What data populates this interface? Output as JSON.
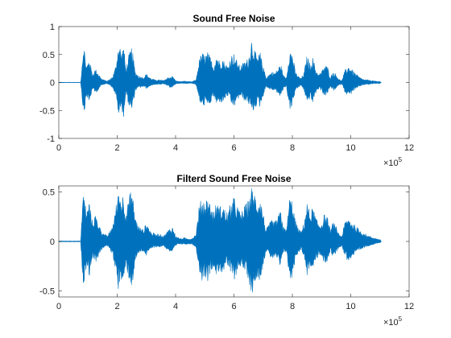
{
  "chart_data": [
    {
      "type": "line",
      "title": "Sound Free Noise",
      "xlabel": "",
      "ylabel": "",
      "xlim": [
        0,
        1200000
      ],
      "ylim": [
        -1,
        1
      ],
      "xticks": [
        0,
        200000,
        400000,
        600000,
        800000,
        1000000,
        1200000
      ],
      "xtick_labels": [
        "0",
        "2",
        "4",
        "6",
        "8",
        "10",
        "12"
      ],
      "x_exponent_base": "×10",
      "x_exponent": "5",
      "yticks": [
        -1,
        -0.5,
        0,
        0.5,
        1
      ],
      "ytick_labels": [
        "-1",
        "-0.5",
        "0",
        "0.5",
        "1"
      ],
      "grid": false,
      "color": "#0072BD",
      "signal_length": 1105000,
      "envelope": {
        "x": [
          0,
          75000,
          80000,
          85000,
          95000,
          105000,
          115000,
          125000,
          135000,
          145000,
          155000,
          165000,
          175000,
          185000,
          195000,
          205000,
          215000,
          222000,
          230000,
          240000,
          250000,
          262000,
          275000,
          290000,
          300000,
          315000,
          330000,
          345000,
          360000,
          375000,
          390000,
          400000,
          410000,
          420000,
          430000,
          440000,
          455000,
          470000,
          480000,
          490000,
          500000,
          510000,
          520000,
          530000,
          540000,
          550000,
          560000,
          570000,
          580000,
          590000,
          600000,
          610000,
          620000,
          630000,
          640000,
          650000,
          660000,
          670000,
          680000,
          690000,
          700000,
          710000,
          720000,
          730000,
          740000,
          750000,
          760000,
          770000,
          780000,
          790000,
          800000,
          810000,
          820000,
          830000,
          840000,
          850000,
          860000,
          870000,
          880000,
          890000,
          900000,
          910000,
          920000,
          930000,
          940000,
          950000,
          960000,
          970000,
          980000,
          990000,
          1000000,
          1010000,
          1020000,
          1030000,
          1040000,
          1050000,
          1060000,
          1070000,
          1080000,
          1090000,
          1100000,
          1105000
        ],
        "upper": [
          0.005,
          0.005,
          0.4,
          0.73,
          0.3,
          0.45,
          0.15,
          0.25,
          0.18,
          0.08,
          0.05,
          0.03,
          0.06,
          0.12,
          0.3,
          0.75,
          0.55,
          0.68,
          0.25,
          0.5,
          0.65,
          0.2,
          0.12,
          0.1,
          0.16,
          0.08,
          0.05,
          0.05,
          0.04,
          0.1,
          0.12,
          0.04,
          0.02,
          0.02,
          0.03,
          0.02,
          0.015,
          0.05,
          0.4,
          0.55,
          0.5,
          0.55,
          0.45,
          0.3,
          0.52,
          0.4,
          0.45,
          0.35,
          0.3,
          0.5,
          0.52,
          0.4,
          0.3,
          0.35,
          0.4,
          0.45,
          0.8,
          0.6,
          0.45,
          0.55,
          0.3,
          0.1,
          0.15,
          0.2,
          0.18,
          0.25,
          0.35,
          0.12,
          0.1,
          0.6,
          0.55,
          0.2,
          0.12,
          0.08,
          0.18,
          0.5,
          0.35,
          0.45,
          0.25,
          0.15,
          0.2,
          0.32,
          0.3,
          0.1,
          0.2,
          0.15,
          0.06,
          0.04,
          0.22,
          0.3,
          0.28,
          0.2,
          0.15,
          0.1,
          0.07,
          0.05,
          0.05,
          0.04,
          0.03,
          0.02,
          0.02,
          0.005
        ],
        "lower": [
          0.005,
          0.005,
          0.3,
          0.6,
          0.25,
          0.38,
          0.12,
          0.2,
          0.14,
          0.06,
          0.04,
          0.02,
          0.05,
          0.1,
          0.25,
          0.6,
          0.48,
          0.63,
          0.2,
          0.42,
          0.55,
          0.15,
          0.1,
          0.08,
          0.12,
          0.06,
          0.04,
          0.04,
          0.03,
          0.08,
          0.1,
          0.03,
          0.02,
          0.02,
          0.02,
          0.02,
          0.015,
          0.04,
          0.3,
          0.48,
          0.4,
          0.45,
          0.38,
          0.25,
          0.42,
          0.35,
          0.38,
          0.3,
          0.25,
          0.4,
          0.45,
          0.35,
          0.25,
          0.3,
          0.35,
          0.38,
          0.55,
          0.5,
          0.38,
          0.45,
          0.25,
          0.08,
          0.12,
          0.15,
          0.14,
          0.2,
          0.28,
          0.1,
          0.08,
          0.48,
          0.45,
          0.15,
          0.1,
          0.06,
          0.14,
          0.4,
          0.28,
          0.38,
          0.2,
          0.12,
          0.15,
          0.25,
          0.22,
          0.08,
          0.15,
          0.12,
          0.05,
          0.03,
          0.18,
          0.25,
          0.22,
          0.15,
          0.12,
          0.08,
          0.05,
          0.04,
          0.04,
          0.03,
          0.02,
          0.02,
          0.02,
          0.005
        ]
      }
    },
    {
      "type": "line",
      "title": "Filterd Sound Free Noise",
      "xlabel": "",
      "ylabel": "",
      "xlim": [
        0,
        1200000
      ],
      "ylim": [
        -0.56,
        0.56
      ],
      "xticks": [
        0,
        200000,
        400000,
        600000,
        800000,
        1000000,
        1200000
      ],
      "xtick_labels": [
        "0",
        "2",
        "4",
        "6",
        "8",
        "10",
        "12"
      ],
      "x_exponent_base": "×10",
      "x_exponent": "5",
      "yticks": [
        -0.5,
        0,
        0.5
      ],
      "ytick_labels": [
        "-0.5",
        "0",
        "0.5"
      ],
      "grid": false,
      "color": "#0072BD",
      "signal_length": 1105000,
      "envelope": {
        "x": [
          0,
          75000,
          80000,
          85000,
          95000,
          105000,
          115000,
          125000,
          135000,
          145000,
          155000,
          165000,
          175000,
          185000,
          195000,
          205000,
          215000,
          222000,
          230000,
          240000,
          250000,
          262000,
          275000,
          290000,
          300000,
          315000,
          330000,
          345000,
          360000,
          375000,
          390000,
          400000,
          410000,
          420000,
          430000,
          440000,
          455000,
          470000,
          480000,
          490000,
          500000,
          510000,
          520000,
          530000,
          540000,
          550000,
          560000,
          570000,
          580000,
          590000,
          600000,
          610000,
          620000,
          630000,
          640000,
          650000,
          660000,
          670000,
          680000,
          690000,
          700000,
          710000,
          720000,
          730000,
          740000,
          750000,
          760000,
          770000,
          780000,
          790000,
          800000,
          810000,
          820000,
          830000,
          840000,
          850000,
          860000,
          870000,
          880000,
          890000,
          900000,
          910000,
          920000,
          930000,
          940000,
          950000,
          960000,
          970000,
          980000,
          990000,
          1000000,
          1010000,
          1020000,
          1030000,
          1040000,
          1050000,
          1060000,
          1070000,
          1080000,
          1090000,
          1100000,
          1105000
        ],
        "upper": [
          0.005,
          0.005,
          0.35,
          0.52,
          0.3,
          0.42,
          0.2,
          0.28,
          0.2,
          0.12,
          0.08,
          0.06,
          0.1,
          0.18,
          0.35,
          0.52,
          0.45,
          0.5,
          0.3,
          0.45,
          0.55,
          0.25,
          0.15,
          0.12,
          0.2,
          0.1,
          0.08,
          0.08,
          0.06,
          0.12,
          0.15,
          0.06,
          0.04,
          0.03,
          0.04,
          0.03,
          0.03,
          0.08,
          0.35,
          0.45,
          0.42,
          0.45,
          0.38,
          0.3,
          0.4,
          0.35,
          0.38,
          0.32,
          0.3,
          0.4,
          0.45,
          0.38,
          0.3,
          0.32,
          0.38,
          0.42,
          0.55,
          0.5,
          0.42,
          0.45,
          0.3,
          0.12,
          0.18,
          0.22,
          0.2,
          0.25,
          0.32,
          0.15,
          0.12,
          0.45,
          0.42,
          0.22,
          0.14,
          0.1,
          0.2,
          0.4,
          0.3,
          0.35,
          0.25,
          0.18,
          0.2,
          0.28,
          0.25,
          0.12,
          0.2,
          0.15,
          0.08,
          0.06,
          0.2,
          0.25,
          0.22,
          0.18,
          0.15,
          0.12,
          0.1,
          0.08,
          0.06,
          0.05,
          0.04,
          0.03,
          0.02,
          0.005
        ],
        "lower": [
          0.005,
          0.005,
          0.3,
          0.45,
          0.25,
          0.35,
          0.16,
          0.22,
          0.16,
          0.1,
          0.06,
          0.05,
          0.08,
          0.15,
          0.3,
          0.5,
          0.4,
          0.45,
          0.25,
          0.38,
          0.48,
          0.2,
          0.12,
          0.1,
          0.15,
          0.08,
          0.06,
          0.06,
          0.05,
          0.1,
          0.12,
          0.05,
          0.03,
          0.03,
          0.03,
          0.03,
          0.03,
          0.06,
          0.28,
          0.4,
          0.35,
          0.4,
          0.32,
          0.25,
          0.35,
          0.3,
          0.32,
          0.28,
          0.25,
          0.35,
          0.4,
          0.32,
          0.25,
          0.28,
          0.32,
          0.38,
          0.55,
          0.45,
          0.35,
          0.4,
          0.25,
          0.1,
          0.15,
          0.18,
          0.16,
          0.2,
          0.28,
          0.12,
          0.1,
          0.4,
          0.38,
          0.18,
          0.12,
          0.08,
          0.16,
          0.35,
          0.25,
          0.3,
          0.2,
          0.15,
          0.16,
          0.24,
          0.2,
          0.1,
          0.16,
          0.12,
          0.06,
          0.05,
          0.16,
          0.2,
          0.18,
          0.15,
          0.12,
          0.1,
          0.08,
          0.06,
          0.05,
          0.04,
          0.03,
          0.02,
          0.02,
          0.005
        ]
      }
    }
  ]
}
